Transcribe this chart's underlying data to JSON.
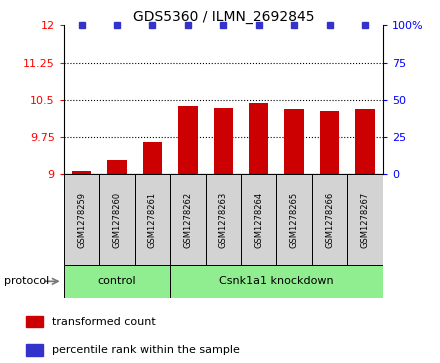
{
  "title": "GDS5360 / ILMN_2692845",
  "samples": [
    "GSM1278259",
    "GSM1278260",
    "GSM1278261",
    "GSM1278262",
    "GSM1278263",
    "GSM1278264",
    "GSM1278265",
    "GSM1278266",
    "GSM1278267"
  ],
  "transformed_counts": [
    9.07,
    9.28,
    9.65,
    10.37,
    10.34,
    10.43,
    10.32,
    10.28,
    10.32
  ],
  "percentile_ranks": [
    100,
    100,
    100,
    100,
    100,
    100,
    100,
    100,
    100
  ],
  "bar_color": "#cc0000",
  "dot_color": "#3333cc",
  "ylim_left": [
    9.0,
    12.0
  ],
  "ylim_right": [
    0,
    100
  ],
  "yticks_left": [
    9.0,
    9.75,
    10.5,
    11.25,
    12.0
  ],
  "ytick_labels_left": [
    "9",
    "9.75",
    "10.5",
    "11.25",
    "12"
  ],
  "yticks_right": [
    0,
    25,
    50,
    75,
    100
  ],
  "ytick_labels_right": [
    "0",
    "25",
    "50",
    "75",
    "100%"
  ],
  "n_control": 3,
  "n_knockdown": 6,
  "control_label": "control",
  "knockdown_label": "Csnk1a1 knockdown",
  "protocol_label": "protocol",
  "legend_bar_label": "transformed count",
  "legend_dot_label": "percentile rank within the sample",
  "sample_box_color": "#d3d3d3",
  "protocol_box_color": "#90ee90",
  "bar_width": 0.55,
  "dot_size": 5,
  "title_fontsize": 10,
  "axis_fontsize": 8,
  "label_fontsize": 7,
  "legend_fontsize": 8
}
